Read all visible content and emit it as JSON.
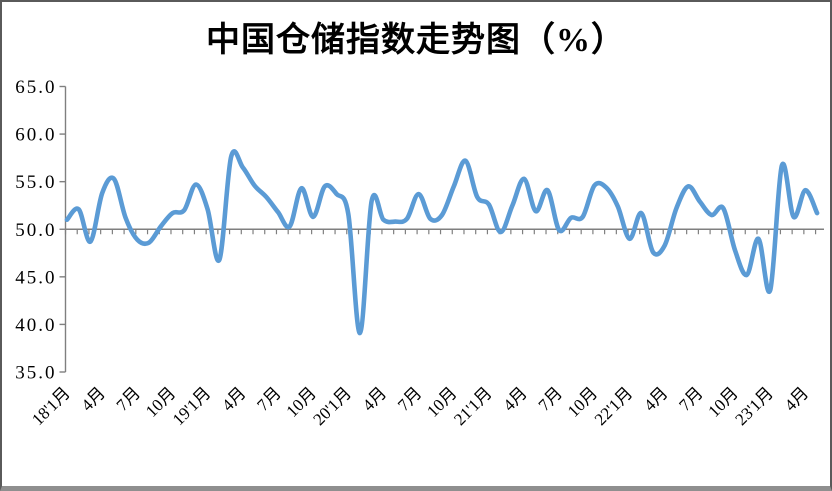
{
  "chart_data": {
    "type": "line",
    "title": "中国仓储指数走势图（%）",
    "ylabel": "",
    "xlabel": "",
    "ylim": [
      35.0,
      65.0
    ],
    "ytick_step": 5.0,
    "y_tick_labels": [
      "65.0",
      "60.0",
      "55.0",
      "50.0",
      "45.0",
      "40.0",
      "35.0"
    ],
    "axis_cross_value": 50.0,
    "grid": "off",
    "legend": "none",
    "x_labels": [
      "18'1月",
      "4月",
      "7月",
      "10月",
      "19'1月",
      "4月",
      "7月",
      "10月",
      "20'1月",
      "4月",
      "7月",
      "10月",
      "21'1月",
      "4月",
      "7月",
      "10月",
      "22'1月",
      "4月",
      "7月",
      "10月",
      "23'1月",
      "4月"
    ],
    "points_per_label": 3,
    "x_range_months": "2018年1月 — 2023年5月",
    "series": [
      {
        "name": "中国仓储指数",
        "values": [
          51.0,
          52.1,
          48.7,
          53.8,
          55.3,
          51.2,
          48.9,
          48.6,
          50.3,
          51.7,
          52.0,
          54.7,
          52.1,
          46.8,
          57.6,
          56.5,
          54.6,
          53.4,
          51.8,
          50.3,
          54.3,
          51.3,
          54.5,
          53.7,
          51.6,
          39.1,
          53.0,
          51.0,
          50.8,
          51.1,
          53.7,
          51.1,
          51.5,
          54.5,
          57.2,
          53.4,
          52.6,
          49.7,
          52.5,
          55.3,
          51.9,
          54.1,
          49.9,
          51.2,
          51.3,
          54.6,
          54.4,
          52.4,
          49.0,
          51.7,
          47.6,
          48.3,
          52.2,
          54.5,
          52.9,
          51.5,
          52.2,
          47.8,
          45.2,
          49.0,
          43.6,
          56.7,
          51.3,
          54.1,
          51.7
        ]
      }
    ],
    "colors": {
      "line": "#5B9BD5",
      "axis": "#7f7f7f",
      "title_text": "#000000",
      "frame_border": "#5a5a5a",
      "frame_bottom": "#8f8f8f",
      "background": "#ffffff"
    }
  }
}
